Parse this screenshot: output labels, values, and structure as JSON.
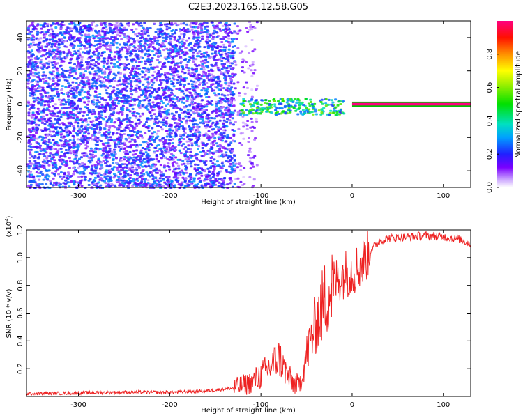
{
  "title": "C2E3.2023.165.12.58.G05",
  "chart_data": [
    {
      "type": "heatmap",
      "xlabel": "Height of straight line (km)",
      "ylabel": "Frequency (Hz)",
      "xlim": [
        -357,
        130
      ],
      "ylim": [
        -50,
        50
      ],
      "xticks": [
        -300,
        -200,
        -100,
        0,
        100
      ],
      "yticks": [
        -40,
        -20,
        0,
        20,
        40
      ],
      "colorbar": {
        "label": "Normalized spectral amplitude",
        "range": [
          0,
          1
        ],
        "ticks": [
          0.0,
          0.2,
          0.4,
          0.6,
          0.8
        ]
      },
      "features": [
        {
          "desc": "scattered low-amplitude noise",
          "x_range": [
            -357,
            -130
          ],
          "freq_range": [
            -50,
            50
          ],
          "amplitude": [
            0.05,
            0.3
          ]
        },
        {
          "desc": "sparse noise",
          "x_range": [
            -130,
            -105
          ],
          "freq_range": [
            -50,
            50
          ],
          "amplitude": [
            0.02,
            0.15
          ]
        },
        {
          "desc": "central energy band",
          "x_range": [
            -125,
            -10
          ],
          "freq_range": [
            -6,
            4
          ],
          "amplitude": [
            0.2,
            0.6
          ]
        },
        {
          "desc": "strong carrier line",
          "x_range": [
            0,
            130
          ],
          "freq_range": [
            -1.5,
            1.5
          ],
          "amplitude": [
            0.9,
            1.0
          ]
        }
      ]
    },
    {
      "type": "line",
      "xlabel": "Height of straight line (km)",
      "ylabel": "SNR (10 * v/v)",
      "y_multiplier": "(x10^4)",
      "xlim": [
        -357,
        130
      ],
      "ylim": [
        0.0,
        1.2
      ],
      "xticks": [
        -300,
        -200,
        -100,
        0,
        100
      ],
      "yticks": [
        0.2,
        0.4,
        0.6,
        0.8,
        1.0,
        1.2
      ],
      "series": [
        {
          "color": "#ee2222",
          "x": [
            -357,
            -300,
            -250,
            -200,
            -160,
            -130,
            -110,
            -95,
            -80,
            -70,
            -65,
            -58,
            -50,
            -40,
            -30,
            -20,
            -10,
            0,
            10,
            20,
            30,
            40,
            60,
            80,
            100,
            110,
            120,
            130
          ],
          "y": [
            0.02,
            0.025,
            0.03,
            0.03,
            0.04,
            0.06,
            0.1,
            0.18,
            0.28,
            0.14,
            0.1,
            0.08,
            0.3,
            0.52,
            0.7,
            0.82,
            0.88,
            0.9,
            0.95,
            1.05,
            1.12,
            1.14,
            1.15,
            1.16,
            1.15,
            1.14,
            1.13,
            1.1
          ]
        }
      ]
    }
  ]
}
